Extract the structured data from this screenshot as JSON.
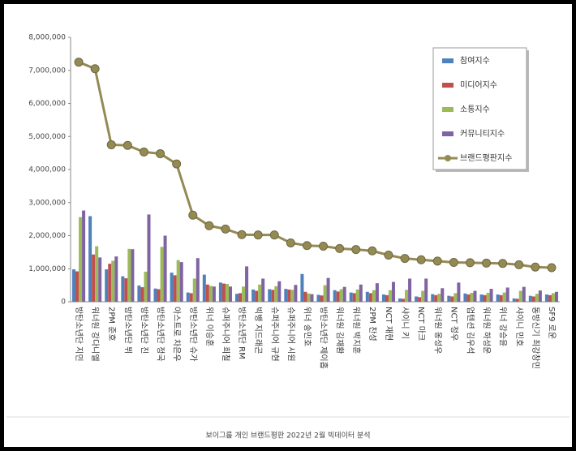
{
  "chart_data": {
    "type": "bar",
    "footer": "보이그룹 개인 브랜드평판  2022년 2월 빅데이터 분석",
    "categories": [
      "방탄소년단 지민",
      "워너원 강다니엘",
      "2PM 준호",
      "방탄소년단 뷔",
      "방탄소년단 진",
      "방탄소년단 정국",
      "아스트로 차은우",
      "방탄소년단 슈가",
      "위너 이승훈",
      "슈퍼주니어 희철",
      "방탄소년단 RM",
      "빅뱅 지드래곤",
      "슈퍼주니어 규현",
      "슈퍼주니어 시원",
      "위너 송민호",
      "방탄소년단 제이홉",
      "워너원 김재환",
      "워너원 박지훈",
      "2PM 찬성",
      "NCT 재현",
      "샤이니 키",
      "NCT 마크",
      "워너원 옹성우",
      "NCT 정우",
      "업텐션 김우석",
      "워너원 하성운",
      "위너 강승윤",
      "샤이니 민호",
      "동방신기 최강창민",
      "SF9 로운"
    ],
    "series": [
      {
        "name": "참여지수",
        "color": "#4f81bd",
        "values": [
          980000,
          2590000,
          980000,
          770000,
          490000,
          400000,
          880000,
          280000,
          820000,
          580000,
          240000,
          370000,
          380000,
          390000,
          840000,
          210000,
          350000,
          280000,
          300000,
          220000,
          100000,
          160000,
          230000,
          180000,
          250000,
          220000,
          220000,
          100000,
          180000,
          220000
        ]
      },
      {
        "name": "미디어지수",
        "color": "#c0504d",
        "values": [
          920000,
          1430000,
          1150000,
          710000,
          440000,
          380000,
          800000,
          260000,
          520000,
          550000,
          260000,
          330000,
          360000,
          370000,
          300000,
          190000,
          310000,
          260000,
          260000,
          200000,
          90000,
          140000,
          200000,
          160000,
          220000,
          200000,
          200000,
          90000,
          160000,
          200000
        ]
      },
      {
        "name": "소통지수",
        "color": "#9bbb59",
        "values": [
          2560000,
          1680000,
          1240000,
          1600000,
          910000,
          1660000,
          1260000,
          700000,
          480000,
          540000,
          460000,
          520000,
          470000,
          360000,
          250000,
          500000,
          380000,
          370000,
          350000,
          350000,
          360000,
          330000,
          240000,
          260000,
          270000,
          270000,
          280000,
          330000,
          240000,
          260000
        ]
      },
      {
        "name": "커뮤니티지수",
        "color": "#8064a2",
        "values": [
          2760000,
          1340000,
          1370000,
          1590000,
          2640000,
          2000000,
          1200000,
          1320000,
          460000,
          460000,
          1070000,
          700000,
          620000,
          510000,
          230000,
          720000,
          450000,
          520000,
          560000,
          600000,
          700000,
          700000,
          410000,
          580000,
          330000,
          390000,
          430000,
          450000,
          340000,
          300000
        ]
      },
      {
        "name": "브랜드평판지수",
        "type": "line",
        "color": "#948a54",
        "values": [
          7250000,
          7050000,
          4750000,
          4730000,
          4530000,
          4480000,
          4170000,
          2620000,
          2300000,
          2200000,
          2030000,
          2020000,
          2020000,
          1780000,
          1700000,
          1680000,
          1610000,
          1580000,
          1540000,
          1410000,
          1310000,
          1270000,
          1230000,
          1190000,
          1180000,
          1170000,
          1160000,
          1120000,
          1050000,
          1030000
        ]
      }
    ],
    "ylim": [
      0,
      8000000
    ],
    "yticks": [
      0,
      {
        "value": 1000000,
        "label": "1,000,000"
      },
      {
        "value": 2000000,
        "label": "2,000,000"
      },
      {
        "value": 3000000,
        "label": "3,000,000"
      },
      {
        "value": 4000000,
        "label": "4,000,000"
      },
      {
        "value": 5000000,
        "label": "5,000,000"
      },
      {
        "value": 6000000,
        "label": "6,000,000"
      },
      {
        "value": 7000000,
        "label": "7,000,000"
      },
      {
        "value": 8000000,
        "label": "8,000,000"
      }
    ],
    "grid": false
  }
}
